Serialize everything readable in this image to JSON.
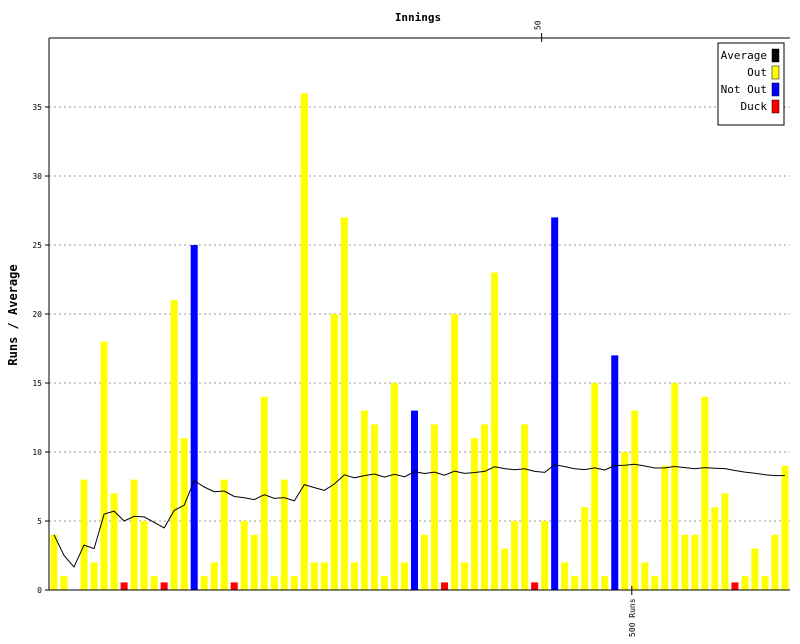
{
  "chart_data": {
    "type": "bar",
    "title": "Innings",
    "xlabel": "",
    "ylabel": "Runs / Average",
    "ylim": [
      0,
      40
    ],
    "yticks": [
      0,
      5,
      10,
      15,
      20,
      25,
      30,
      35
    ],
    "grid": "horizontal dotted",
    "legend_position": "top-right",
    "legend": [
      {
        "label": "Average",
        "color": "#000000"
      },
      {
        "label": "Out",
        "color": "#ffff00"
      },
      {
        "label": "Not Out",
        "color": "#0000ff"
      },
      {
        "label": "Duck",
        "color": "#ff0000"
      }
    ],
    "top_marker": {
      "label": "50",
      "innings": 50
    },
    "bottom_marker": {
      "label": "500 Runs",
      "innings": 59
    },
    "innings": [
      {
        "runs": 4,
        "status": "out"
      },
      {
        "runs": 1,
        "status": "out"
      },
      {
        "runs": 0,
        "status": "out"
      },
      {
        "runs": 8,
        "status": "out"
      },
      {
        "runs": 2,
        "status": "out"
      },
      {
        "runs": 18,
        "status": "out"
      },
      {
        "runs": 7,
        "status": "out"
      },
      {
        "runs": 0,
        "status": "duck"
      },
      {
        "runs": 8,
        "status": "out"
      },
      {
        "runs": 5,
        "status": "out"
      },
      {
        "runs": 1,
        "status": "out"
      },
      {
        "runs": 0,
        "status": "duck"
      },
      {
        "runs": 21,
        "status": "out"
      },
      {
        "runs": 11,
        "status": "out"
      },
      {
        "runs": 25,
        "status": "not out"
      },
      {
        "runs": 1,
        "status": "out"
      },
      {
        "runs": 2,
        "status": "out"
      },
      {
        "runs": 8,
        "status": "out"
      },
      {
        "runs": 0,
        "status": "duck"
      },
      {
        "runs": 5,
        "status": "out"
      },
      {
        "runs": 4,
        "status": "out"
      },
      {
        "runs": 14,
        "status": "out"
      },
      {
        "runs": 1,
        "status": "out"
      },
      {
        "runs": 8,
        "status": "out"
      },
      {
        "runs": 1,
        "status": "out"
      },
      {
        "runs": 36,
        "status": "out"
      },
      {
        "runs": 2,
        "status": "out"
      },
      {
        "runs": 2,
        "status": "out"
      },
      {
        "runs": 20,
        "status": "out"
      },
      {
        "runs": 27,
        "status": "out"
      },
      {
        "runs": 2,
        "status": "out"
      },
      {
        "runs": 13,
        "status": "out"
      },
      {
        "runs": 12,
        "status": "out"
      },
      {
        "runs": 1,
        "status": "out"
      },
      {
        "runs": 15,
        "status": "out"
      },
      {
        "runs": 2,
        "status": "out"
      },
      {
        "runs": 13,
        "status": "not out"
      },
      {
        "runs": 4,
        "status": "out"
      },
      {
        "runs": 12,
        "status": "out"
      },
      {
        "runs": 0,
        "status": "duck"
      },
      {
        "runs": 20,
        "status": "out"
      },
      {
        "runs": 2,
        "status": "out"
      },
      {
        "runs": 11,
        "status": "out"
      },
      {
        "runs": 12,
        "status": "out"
      },
      {
        "runs": 23,
        "status": "out"
      },
      {
        "runs": 3,
        "status": "out"
      },
      {
        "runs": 5,
        "status": "out"
      },
      {
        "runs": 12,
        "status": "out"
      },
      {
        "runs": 0,
        "status": "duck"
      },
      {
        "runs": 5,
        "status": "out"
      },
      {
        "runs": 27,
        "status": "not out"
      },
      {
        "runs": 2,
        "status": "out"
      },
      {
        "runs": 1,
        "status": "out"
      },
      {
        "runs": 6,
        "status": "out"
      },
      {
        "runs": 15,
        "status": "out"
      },
      {
        "runs": 1,
        "status": "out"
      },
      {
        "runs": 17,
        "status": "not out"
      },
      {
        "runs": 10,
        "status": "out"
      },
      {
        "runs": 13,
        "status": "out"
      },
      {
        "runs": 2,
        "status": "out"
      },
      {
        "runs": 1,
        "status": "out"
      },
      {
        "runs": 9,
        "status": "out"
      },
      {
        "runs": 15,
        "status": "out"
      },
      {
        "runs": 4,
        "status": "out"
      },
      {
        "runs": 4,
        "status": "out"
      },
      {
        "runs": 14,
        "status": "out"
      },
      {
        "runs": 6,
        "status": "out"
      },
      {
        "runs": 7,
        "status": "out"
      },
      {
        "runs": 0,
        "status": "duck"
      },
      {
        "runs": 1,
        "status": "out"
      },
      {
        "runs": 3,
        "status": "out"
      },
      {
        "runs": 1,
        "status": "out"
      },
      {
        "runs": 4,
        "status": "out"
      },
      {
        "runs": 9,
        "status": "out"
      }
    ],
    "colors": {
      "out": "#ffff00",
      "not out": "#0000ff",
      "duck": "#ff0000",
      "average": "#000000",
      "grid": "#999999"
    }
  }
}
